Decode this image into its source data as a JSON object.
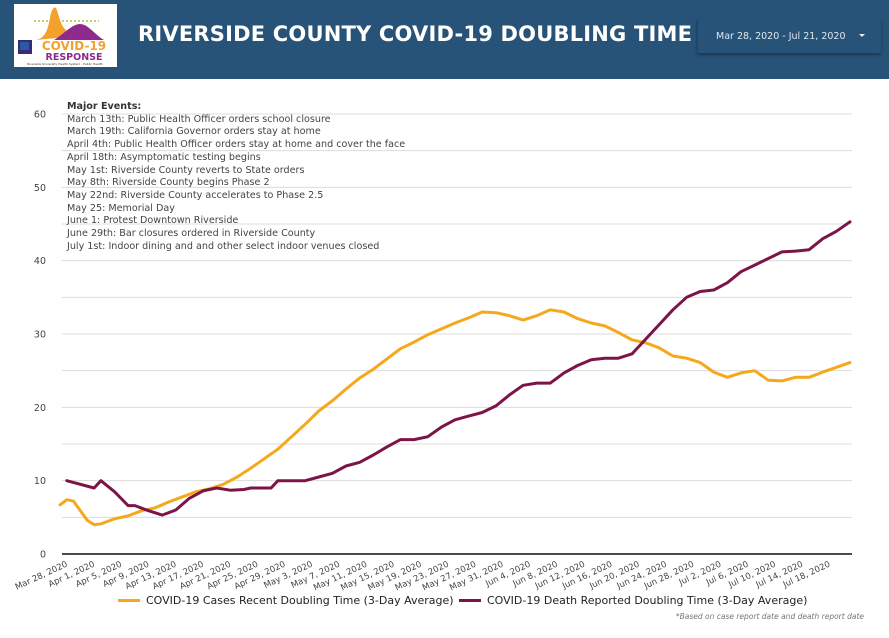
{
  "header": {
    "title": "RIVERSIDE COUNTY COVID-19 DOUBLING TIME",
    "logo": {
      "line1": "COVID-19",
      "line2": "RESPONSE",
      "subtitle": "Riverside University Health System - Public Health"
    },
    "date_range": "Mar 28, 2020 - Jul 21, 2020"
  },
  "colors": {
    "header_bg": "#275378",
    "cases": "#f6a81c",
    "deaths": "#7d1447"
  },
  "events": {
    "heading": "Major Events:",
    "items": [
      "March 13th: Public Health Officer orders school closure",
      "March 19th: California Governor orders stay at home",
      "April 4th: Public Health Officer orders stay at home and cover the face",
      "April 18th: Asymptomatic testing begins",
      "May 1st: Riverside County reverts to State orders",
      "May 8th: Riverside County begins Phase 2",
      "May 22nd: Riverside County accelerates to Phase 2.5",
      "May 25: Memorial Day",
      "June 1: Protest Downtown Riverside",
      "June 29th: Bar closures ordered in Riverside County",
      "July 1st: Indoor dining and and other select indoor venues closed"
    ]
  },
  "footnote": "*Based on case report date and death report date",
  "chart_data": {
    "type": "line",
    "title": "RIVERSIDE COUNTY COVID-19 DOUBLING TIME",
    "xlabel": "",
    "ylabel": "",
    "ylim": [
      0,
      60
    ],
    "yticks": [
      0,
      10,
      20,
      30,
      40,
      50,
      60
    ],
    "ygrid_step": 5,
    "grid": true,
    "legend_position": "bottom",
    "x_start": "Mar 28, 2020",
    "x_end": "Jul 21, 2020",
    "x_total_days": 116,
    "xtick_labels": [
      "Mar 28, 2020",
      "Apr 1, 2020",
      "Apr 5, 2020",
      "Apr 9, 2020",
      "Apr 13, 2020",
      "Apr 17, 2020",
      "Apr 21, 2020",
      "Apr 25, 2020",
      "Apr 29, 2020",
      "May 3, 2020",
      "May 7, 2020",
      "May 11, 2020",
      "May 15, 2020",
      "May 19, 2020",
      "May 23, 2020",
      "May 27, 2020",
      "May 31, 2020",
      "Jun 4, 2020",
      "Jun 8, 2020",
      "Jun 12, 2020",
      "Jun 16, 2020",
      "Jun 20, 2020",
      "Jun 24, 2020",
      "Jun 28, 2020",
      "Jul 2, 2020",
      "Jul 6, 2020",
      "Jul 10, 2020",
      "Jul 14, 2020",
      "Jul 18, 2020"
    ],
    "series": [
      {
        "name": "COVID-19 Cases Recent Doubling Time (3-Day Average)",
        "color": "#f6a81c",
        "points": [
          [
            0,
            6.7
          ],
          [
            1,
            7.4
          ],
          [
            2,
            7.2
          ],
          [
            4,
            4.6
          ],
          [
            5,
            4.0
          ],
          [
            6,
            4.1
          ],
          [
            8,
            4.8
          ],
          [
            10,
            5.2
          ],
          [
            12,
            5.9
          ],
          [
            14,
            6.3
          ],
          [
            16,
            7.1
          ],
          [
            18,
            7.8
          ],
          [
            20,
            8.5
          ],
          [
            22,
            8.9
          ],
          [
            24,
            9.5
          ],
          [
            26,
            10.5
          ],
          [
            28,
            11.7
          ],
          [
            30,
            13.0
          ],
          [
            32,
            14.3
          ],
          [
            34,
            16.0
          ],
          [
            36,
            17.7
          ],
          [
            38,
            19.5
          ],
          [
            40,
            20.9
          ],
          [
            42,
            22.5
          ],
          [
            44,
            24.0
          ],
          [
            46,
            25.2
          ],
          [
            48,
            26.6
          ],
          [
            50,
            28.0
          ],
          [
            52,
            28.9
          ],
          [
            54,
            29.9
          ],
          [
            56,
            30.7
          ],
          [
            58,
            31.5
          ],
          [
            60,
            32.2
          ],
          [
            62,
            33.0
          ],
          [
            64,
            32.9
          ],
          [
            66,
            32.5
          ],
          [
            68,
            31.9
          ],
          [
            70,
            32.5
          ],
          [
            72,
            33.3
          ],
          [
            74,
            33.0
          ],
          [
            76,
            32.1
          ],
          [
            78,
            31.5
          ],
          [
            80,
            31.1
          ],
          [
            82,
            30.2
          ],
          [
            84,
            29.2
          ],
          [
            86,
            28.8
          ],
          [
            88,
            28.1
          ],
          [
            90,
            27.0
          ],
          [
            92,
            26.7
          ],
          [
            94,
            26.1
          ],
          [
            96,
            24.8
          ],
          [
            98,
            24.1
          ],
          [
            100,
            24.7
          ],
          [
            102,
            25.0
          ],
          [
            104,
            23.7
          ],
          [
            106,
            23.6
          ],
          [
            108,
            24.1
          ],
          [
            110,
            24.1
          ],
          [
            112,
            24.8
          ],
          [
            116,
            26.1
          ]
        ]
      },
      {
        "name": "COVID-19 Death Reported Doubling Time (3-Day Average)",
        "color": "#7d1447",
        "points": [
          [
            1,
            10.0
          ],
          [
            5,
            9.0
          ],
          [
            6,
            10.0
          ],
          [
            8,
            8.5
          ],
          [
            10,
            6.6
          ],
          [
            11,
            6.6
          ],
          [
            13,
            5.9
          ],
          [
            15,
            5.3
          ],
          [
            17,
            6.0
          ],
          [
            19,
            7.6
          ],
          [
            21,
            8.6
          ],
          [
            23,
            9.0
          ],
          [
            25,
            8.7
          ],
          [
            27,
            8.8
          ],
          [
            28,
            9.0
          ],
          [
            31,
            9.0
          ],
          [
            32,
            10.0
          ],
          [
            34,
            10.0
          ],
          [
            36,
            10.0
          ],
          [
            38,
            10.5
          ],
          [
            40,
            11.0
          ],
          [
            42,
            12.0
          ],
          [
            44,
            12.5
          ],
          [
            46,
            13.5
          ],
          [
            48,
            14.6
          ],
          [
            50,
            15.6
          ],
          [
            52,
            15.6
          ],
          [
            54,
            16.0
          ],
          [
            56,
            17.3
          ],
          [
            58,
            18.3
          ],
          [
            60,
            18.8
          ],
          [
            62,
            19.3
          ],
          [
            64,
            20.2
          ],
          [
            66,
            21.7
          ],
          [
            68,
            23.0
          ],
          [
            70,
            23.3
          ],
          [
            72,
            23.3
          ],
          [
            74,
            24.7
          ],
          [
            76,
            25.7
          ],
          [
            78,
            26.5
          ],
          [
            80,
            26.7
          ],
          [
            82,
            26.7
          ],
          [
            84,
            27.3
          ],
          [
            86,
            29.3
          ],
          [
            88,
            31.3
          ],
          [
            90,
            33.3
          ],
          [
            92,
            35.0
          ],
          [
            94,
            35.8
          ],
          [
            96,
            36.0
          ],
          [
            98,
            37.0
          ],
          [
            100,
            38.5
          ],
          [
            102,
            39.4
          ],
          [
            104,
            40.3
          ],
          [
            106,
            41.2
          ],
          [
            108,
            41.3
          ],
          [
            110,
            41.5
          ],
          [
            112,
            43.0
          ],
          [
            114,
            44.0
          ],
          [
            116,
            45.3
          ]
        ]
      }
    ]
  }
}
